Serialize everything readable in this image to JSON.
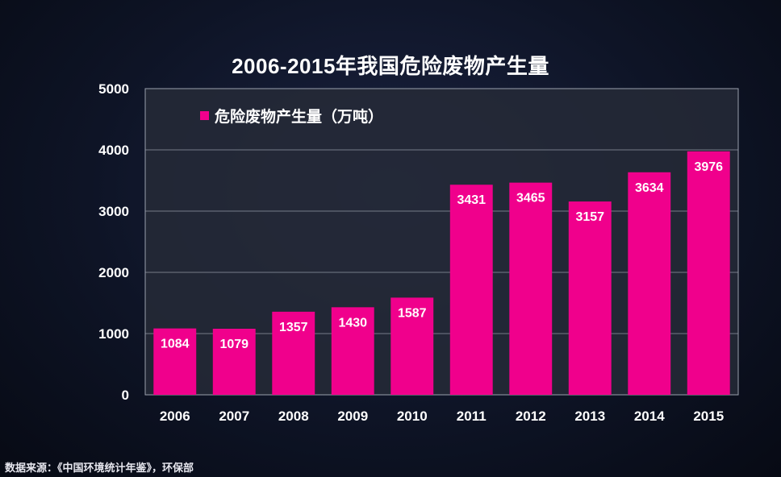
{
  "chart_data": {
    "type": "bar",
    "title": "2006-2015年我国危险废物产生量",
    "categories": [
      "2006",
      "2007",
      "2008",
      "2009",
      "2010",
      "2011",
      "2012",
      "2013",
      "2014",
      "2015"
    ],
    "series": [
      {
        "name": "危险废物产生量（万吨）",
        "values": [
          1084,
          1079,
          1357,
          1430,
          1587,
          3431,
          3465,
          3157,
          3634,
          3976
        ]
      }
    ],
    "xlabel": "",
    "ylabel": "",
    "ylim": [
      0,
      5000
    ],
    "yticks": [
      0,
      1000,
      2000,
      3000,
      4000,
      5000
    ],
    "grid": true,
    "legend_position": "top-left",
    "data_labels": true
  },
  "colors": {
    "bar": "#f0008c",
    "plot_background": "#262a37",
    "gridline": "#9aa0ad",
    "text": "#ffffff"
  },
  "source_note": "数据来源：《中国环境统计年鉴》，环保部"
}
